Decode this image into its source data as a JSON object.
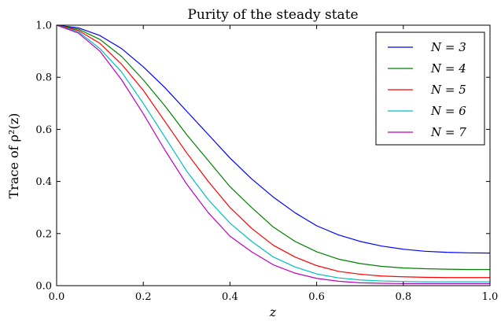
{
  "chart_data": {
    "type": "line",
    "title": "Purity of the steady state",
    "xlabel": "z",
    "ylabel": "Trace of ρ²(z)",
    "xlim": [
      0.0,
      1.0
    ],
    "ylim": [
      0.0,
      1.0
    ],
    "xticks": [
      "0.0",
      "0.2",
      "0.4",
      "0.6",
      "0.8",
      "1.0"
    ],
    "yticks": [
      "0.0",
      "0.2",
      "0.4",
      "0.6",
      "0.8",
      "1.0"
    ],
    "grid": false,
    "legend_position": "top-right",
    "x": [
      0.0,
      0.05,
      0.1,
      0.15,
      0.2,
      0.25,
      0.3,
      0.35,
      0.4,
      0.45,
      0.5,
      0.55,
      0.6,
      0.65,
      0.7,
      0.75,
      0.8,
      0.85,
      0.9,
      0.95,
      1.0
    ],
    "series": [
      {
        "name": "N = 3",
        "color": "#0000ff",
        "values": [
          1.0,
          0.99,
          0.96,
          0.91,
          0.84,
          0.76,
          0.67,
          0.58,
          0.49,
          0.41,
          0.34,
          0.28,
          0.23,
          0.195,
          0.17,
          0.152,
          0.14,
          0.132,
          0.128,
          0.126,
          0.125
        ]
      },
      {
        "name": "N = 4",
        "color": "#008000",
        "values": [
          1.0,
          0.985,
          0.945,
          0.88,
          0.79,
          0.69,
          0.58,
          0.48,
          0.38,
          0.3,
          0.225,
          0.17,
          0.13,
          0.102,
          0.085,
          0.074,
          0.068,
          0.065,
          0.063,
          0.062,
          0.062
        ]
      },
      {
        "name": "N = 5",
        "color": "#ff0000",
        "values": [
          1.0,
          0.98,
          0.93,
          0.85,
          0.75,
          0.63,
          0.51,
          0.4,
          0.3,
          0.22,
          0.155,
          0.11,
          0.077,
          0.055,
          0.044,
          0.037,
          0.034,
          0.032,
          0.031,
          0.031,
          0.031
        ]
      },
      {
        "name": "N = 6",
        "color": "#00bfbf",
        "values": [
          1.0,
          0.975,
          0.91,
          0.82,
          0.7,
          0.57,
          0.44,
          0.33,
          0.24,
          0.17,
          0.11,
          0.072,
          0.045,
          0.03,
          0.022,
          0.018,
          0.016,
          0.015,
          0.015,
          0.015,
          0.015
        ]
      },
      {
        "name": "N = 7",
        "color": "#bf00bf",
        "values": [
          1.0,
          0.97,
          0.9,
          0.79,
          0.66,
          0.52,
          0.39,
          0.28,
          0.19,
          0.13,
          0.08,
          0.048,
          0.028,
          0.017,
          0.011,
          0.009,
          0.008,
          0.008,
          0.008,
          0.008,
          0.008
        ]
      }
    ]
  }
}
